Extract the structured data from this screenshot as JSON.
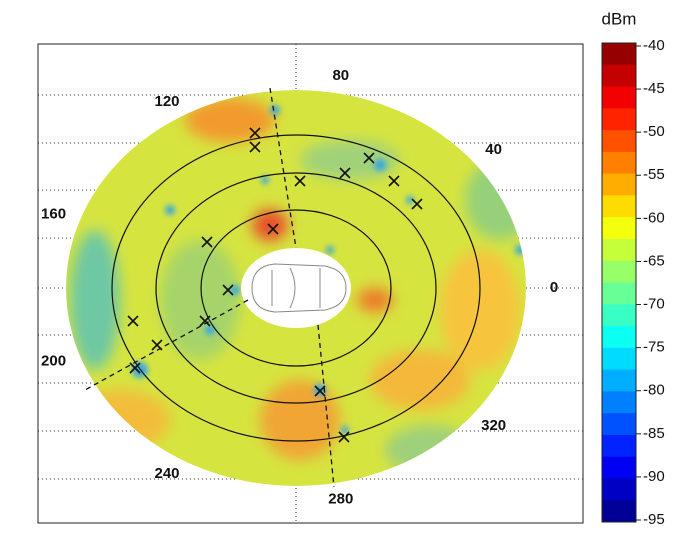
{
  "chart_data": {
    "type": "polar_heatmap",
    "angle_ticks": [
      0,
      40,
      80,
      120,
      160,
      200,
      240,
      280,
      320
    ],
    "colorbar": {
      "label": "dBm",
      "colormap": "jet",
      "lim": [
        -95,
        -40
      ],
      "ticks": [
        -40,
        -45,
        -50,
        -55,
        -60,
        -65,
        -70,
        -75,
        -80,
        -85,
        -90,
        -95
      ]
    }
  }
}
